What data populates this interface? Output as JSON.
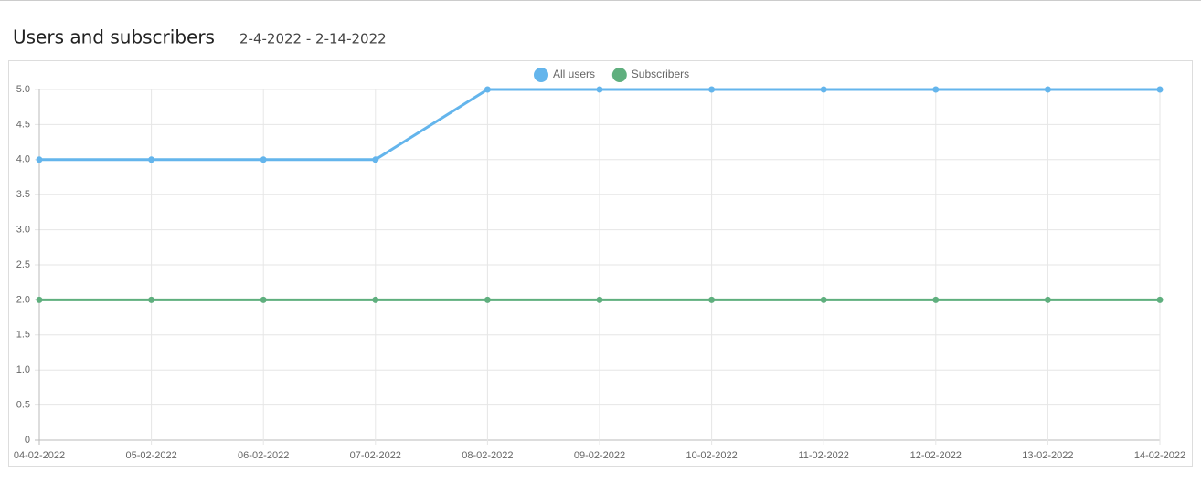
{
  "chart_data": {
    "type": "line",
    "title": "Users and subscribers",
    "subtitle": "2-4-2022 - 2-14-2022",
    "categories": [
      "04-02-2022",
      "05-02-2022",
      "06-02-2022",
      "07-02-2022",
      "08-02-2022",
      "09-02-2022",
      "10-02-2022",
      "11-02-2022",
      "12-02-2022",
      "13-02-2022",
      "14-02-2022"
    ],
    "series": [
      {
        "name": "All users",
        "color": "#64b5ec",
        "values": [
          4,
          4,
          4,
          4,
          5,
          5,
          5,
          5,
          5,
          5,
          5
        ]
      },
      {
        "name": "Subscribers",
        "color": "#5faf7e",
        "values": [
          2,
          2,
          2,
          2,
          2,
          2,
          2,
          2,
          2,
          2,
          2
        ]
      }
    ],
    "ylim": [
      0,
      5
    ],
    "yticks": [
      0,
      0.5,
      {
        "value": 1,
        "label": "1.0"
      },
      1.5,
      {
        "value": 2,
        "label": "2.0"
      },
      2.5,
      {
        "value": 3,
        "label": "3.0"
      },
      3.5,
      {
        "value": 4,
        "label": "4.0"
      },
      4.5,
      {
        "value": 5,
        "label": "5.0"
      }
    ],
    "grid": true,
    "legend": "top"
  }
}
